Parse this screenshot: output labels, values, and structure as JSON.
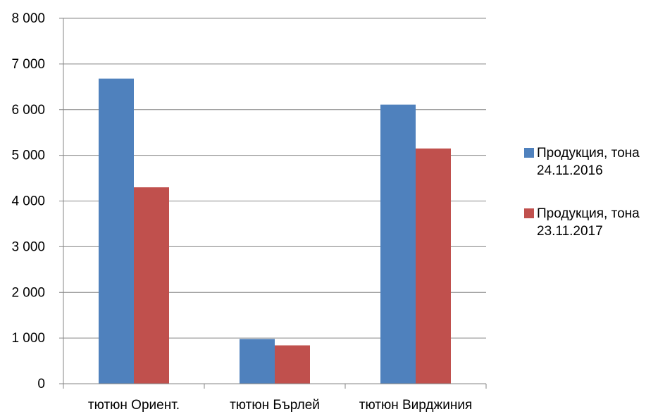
{
  "chart_data": {
    "type": "bar",
    "categories": [
      "тютюн Ориент.",
      "тютюн Бърлей",
      "тютюн Вирджиния"
    ],
    "series": [
      {
        "name_line1": "Продукция, тона",
        "name_line2": "24.11.2016",
        "color": "#4f81bd",
        "values": [
          6680,
          980,
          6110
        ]
      },
      {
        "name_line1": "Продукция, тона",
        "name_line2": "23.11.2017",
        "color": "#c0504d",
        "values": [
          4300,
          840,
          5150
        ]
      }
    ],
    "y_ticks": [
      "0",
      "1 000",
      "2 000",
      "3 000",
      "4 000",
      "5 000",
      "6 000",
      "7 000",
      "8 000"
    ],
    "ylim": [
      0,
      8000
    ],
    "grid": true,
    "legend_position": "right"
  }
}
